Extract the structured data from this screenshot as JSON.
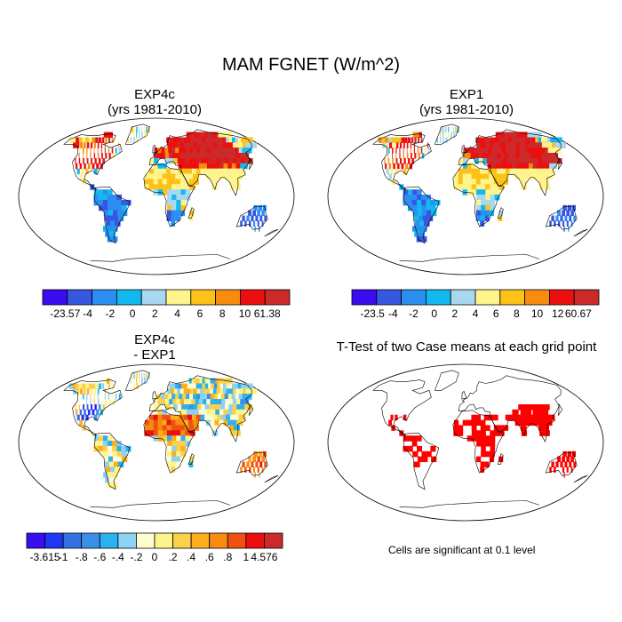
{
  "main_title": "MAM FGNET (W/m^2)",
  "panels": [
    {
      "id": "exp4c",
      "title_line1": "EXP4c",
      "title_line2": "(yrs 1981-2010)"
    },
    {
      "id": "exp1",
      "title_line1": "EXP1",
      "title_line2": "(yrs 1981-2010)"
    },
    {
      "id": "diff",
      "title_line1": "EXP4c",
      "title_line2": "- EXP1"
    },
    {
      "id": "ttest",
      "title_line1": "T-Test of two Case means at each grid point",
      "title_line2": ""
    }
  ],
  "significance_note": "Cells are significant at 0.1 level",
  "chart_data": [
    {
      "type": "heatmap",
      "title": "EXP4c (yrs 1981-2010)",
      "variable": "FGNET",
      "units": "W/m^2",
      "season": "MAM",
      "colorbar": {
        "labels": [
          "-23.57",
          "-4",
          "-2",
          "0",
          "2",
          "4",
          "6",
          "8",
          "10",
          "61.38"
        ],
        "colors": [
          "#3a0cf0",
          "#3857e0",
          "#2a8ff0",
          "#12b9f0",
          "#a8d8f0",
          "#fff38c",
          "#fcc21a",
          "#f78c0e",
          "#ec0f0f",
          "#cc2a2a"
        ]
      }
    },
    {
      "type": "heatmap",
      "title": "EXP1 (yrs 1981-2010)",
      "variable": "FGNET",
      "units": "W/m^2",
      "season": "MAM",
      "colorbar": {
        "labels": [
          "-23.5",
          "-4",
          "-2",
          "0",
          "2",
          "4",
          "6",
          "8",
          "10",
          "12",
          "60.67"
        ],
        "colors": [
          "#3a0cf0",
          "#3857e0",
          "#2a8ff0",
          "#12b9f0",
          "#a8d8f0",
          "#fff38c",
          "#fcc21a",
          "#f78c0e",
          "#ec0f0f",
          "#cc2a2a"
        ]
      }
    },
    {
      "type": "heatmap",
      "title": "EXP4c - EXP1",
      "variable": "FGNET difference",
      "units": "W/m^2",
      "season": "MAM",
      "colorbar": {
        "labels": [
          "-3.615",
          "-1",
          "-.8",
          "-.6",
          "-.4",
          "-.2",
          "0",
          ".2",
          ".4",
          ".6",
          ".8",
          "1",
          "4.576"
        ],
        "colors": [
          "#3a0cf0",
          "#1f36f5",
          "#3570e0",
          "#3a90e8",
          "#2bb0f0",
          "#8cd2f5",
          "#fffcd0",
          "#fff38c",
          "#fcd14a",
          "#fcae1e",
          "#f78c0e",
          "#f05010",
          "#ec0f0f",
          "#cc2a2a"
        ]
      }
    },
    {
      "type": "heatmap",
      "title": "T-Test of two Case means at each grid point",
      "significance_level": 0.1,
      "significant_color": "#ff0000"
    }
  ],
  "colors": {
    "land_outline": "#000000",
    "significant": "#ff0000"
  }
}
